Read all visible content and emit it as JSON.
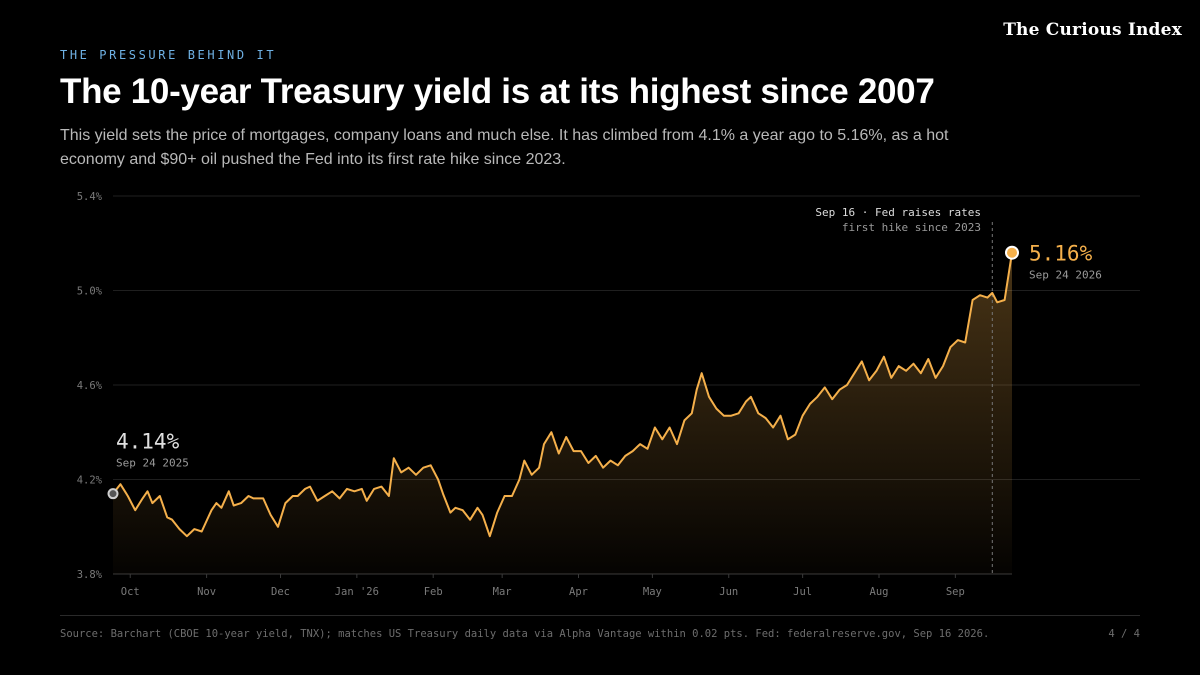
{
  "header": {
    "kicker": "THE PRESSURE BEHIND IT",
    "brand": "The Curious Index",
    "title": "The 10-year Treasury yield is at its highest since 2007",
    "subtitle": "This yield sets the price of mortgages, company loans and much else. It has climbed from 4.1% a year ago to 5.16%, as a hot economy and $90+ oil pushed the Fed into its first rate hike since 2023."
  },
  "footer": {
    "source": "Source: Barchart (CBOE 10-year yield, TNX); matches US Treasury daily data via Alpha Vantage within 0.02 pts. Fed: federalreserve.gov, Sep 16 2026.",
    "page": "4 / 4"
  },
  "colors": {
    "line": "#f5b04b",
    "grid": "#1f1f1f",
    "axis_text": "#7a7a7a",
    "start_marker": "#cfcfcf",
    "annotation_line": "#777777"
  },
  "chart_data": {
    "type": "area",
    "title": "",
    "xlabel": "",
    "ylabel": "",
    "ylim": [
      3.8,
      5.4
    ],
    "x_range": [
      "2025-09-24",
      "2026-09-24"
    ],
    "yticks": [
      {
        "value": 3.8,
        "label": "3.8%"
      },
      {
        "value": 4.2,
        "label": "4.2%"
      },
      {
        "value": 4.6,
        "label": "4.6%"
      },
      {
        "value": 5.0,
        "label": "5.0%"
      },
      {
        "value": 5.4,
        "label": "5.4%"
      }
    ],
    "xticks": [
      {
        "date": "2025-10-01",
        "label": "Oct"
      },
      {
        "date": "2025-11-01",
        "label": "Nov"
      },
      {
        "date": "2025-12-01",
        "label": "Dec"
      },
      {
        "date": "2026-01-01",
        "label": "Jan '26"
      },
      {
        "date": "2026-02-01",
        "label": "Feb"
      },
      {
        "date": "2026-03-01",
        "label": "Mar"
      },
      {
        "date": "2026-04-01",
        "label": "Apr"
      },
      {
        "date": "2026-05-01",
        "label": "May"
      },
      {
        "date": "2026-06-01",
        "label": "Jun"
      },
      {
        "date": "2026-07-01",
        "label": "Jul"
      },
      {
        "date": "2026-08-01",
        "label": "Aug"
      },
      {
        "date": "2026-09-01",
        "label": "Sep"
      }
    ],
    "grid": true,
    "series": [
      {
        "points": [
          [
            "2025-09-24",
            4.14
          ],
          [
            "2025-09-27",
            4.18
          ],
          [
            "2025-09-30",
            4.13
          ],
          [
            "2025-10-03",
            4.07
          ],
          [
            "2025-10-06",
            4.12
          ],
          [
            "2025-10-08",
            4.15
          ],
          [
            "2025-10-10",
            4.1
          ],
          [
            "2025-10-13",
            4.13
          ],
          [
            "2025-10-16",
            4.04
          ],
          [
            "2025-10-18",
            4.03
          ],
          [
            "2025-10-21",
            3.99
          ],
          [
            "2025-10-24",
            3.96
          ],
          [
            "2025-10-27",
            3.99
          ],
          [
            "2025-10-30",
            3.98
          ],
          [
            "2025-11-03",
            4.07
          ],
          [
            "2025-11-05",
            4.1
          ],
          [
            "2025-11-07",
            4.08
          ],
          [
            "2025-11-10",
            4.15
          ],
          [
            "2025-11-12",
            4.09
          ],
          [
            "2025-11-15",
            4.1
          ],
          [
            "2025-11-18",
            4.13
          ],
          [
            "2025-11-20",
            4.12
          ],
          [
            "2025-11-24",
            4.12
          ],
          [
            "2025-11-27",
            4.05
          ],
          [
            "2025-11-30",
            4.0
          ],
          [
            "2025-12-03",
            4.1
          ],
          [
            "2025-12-06",
            4.13
          ],
          [
            "2025-12-08",
            4.13
          ],
          [
            "2025-12-11",
            4.16
          ],
          [
            "2025-12-13",
            4.17
          ],
          [
            "2025-12-16",
            4.11
          ],
          [
            "2025-12-19",
            4.13
          ],
          [
            "2025-12-22",
            4.15
          ],
          [
            "2025-12-25",
            4.12
          ],
          [
            "2025-12-28",
            4.16
          ],
          [
            "2025-12-31",
            4.15
          ],
          [
            "2026-01-03",
            4.16
          ],
          [
            "2026-01-05",
            4.11
          ],
          [
            "2026-01-08",
            4.16
          ],
          [
            "2026-01-11",
            4.17
          ],
          [
            "2026-01-14",
            4.13
          ],
          [
            "2026-01-16",
            4.29
          ],
          [
            "2026-01-19",
            4.23
          ],
          [
            "2026-01-22",
            4.25
          ],
          [
            "2026-01-25",
            4.22
          ],
          [
            "2026-01-28",
            4.25
          ],
          [
            "2026-01-31",
            4.26
          ],
          [
            "2026-02-03",
            4.2
          ],
          [
            "2026-02-05",
            4.14
          ],
          [
            "2026-02-08",
            4.06
          ],
          [
            "2026-02-10",
            4.08
          ],
          [
            "2026-02-13",
            4.07
          ],
          [
            "2026-02-16",
            4.03
          ],
          [
            "2026-02-19",
            4.08
          ],
          [
            "2026-02-21",
            4.05
          ],
          [
            "2026-02-24",
            3.96
          ],
          [
            "2026-02-27",
            4.06
          ],
          [
            "2026-03-02",
            4.13
          ],
          [
            "2026-03-05",
            4.13
          ],
          [
            "2026-03-08",
            4.2
          ],
          [
            "2026-03-10",
            4.28
          ],
          [
            "2026-03-13",
            4.22
          ],
          [
            "2026-03-16",
            4.25
          ],
          [
            "2026-03-18",
            4.35
          ],
          [
            "2026-03-21",
            4.4
          ],
          [
            "2026-03-24",
            4.31
          ],
          [
            "2026-03-27",
            4.38
          ],
          [
            "2026-03-30",
            4.32
          ],
          [
            "2026-04-02",
            4.32
          ],
          [
            "2026-04-05",
            4.27
          ],
          [
            "2026-04-08",
            4.3
          ],
          [
            "2026-04-11",
            4.25
          ],
          [
            "2026-04-14",
            4.28
          ],
          [
            "2026-04-17",
            4.26
          ],
          [
            "2026-04-20",
            4.3
          ],
          [
            "2026-04-23",
            4.32
          ],
          [
            "2026-04-26",
            4.35
          ],
          [
            "2026-04-29",
            4.33
          ],
          [
            "2026-05-02",
            4.42
          ],
          [
            "2026-05-05",
            4.37
          ],
          [
            "2026-05-08",
            4.42
          ],
          [
            "2026-05-11",
            4.35
          ],
          [
            "2026-05-14",
            4.45
          ],
          [
            "2026-05-17",
            4.48
          ],
          [
            "2026-05-19",
            4.58
          ],
          [
            "2026-05-21",
            4.65
          ],
          [
            "2026-05-24",
            4.55
          ],
          [
            "2026-05-27",
            4.5
          ],
          [
            "2026-05-30",
            4.47
          ],
          [
            "2026-06-02",
            4.47
          ],
          [
            "2026-06-05",
            4.48
          ],
          [
            "2026-06-08",
            4.53
          ],
          [
            "2026-06-10",
            4.55
          ],
          [
            "2026-06-13",
            4.48
          ],
          [
            "2026-06-16",
            4.46
          ],
          [
            "2026-06-19",
            4.42
          ],
          [
            "2026-06-22",
            4.47
          ],
          [
            "2026-06-25",
            4.37
          ],
          [
            "2026-06-28",
            4.39
          ],
          [
            "2026-07-01",
            4.47
          ],
          [
            "2026-07-04",
            4.52
          ],
          [
            "2026-07-07",
            4.55
          ],
          [
            "2026-07-10",
            4.59
          ],
          [
            "2026-07-13",
            4.54
          ],
          [
            "2026-07-16",
            4.58
          ],
          [
            "2026-07-19",
            4.6
          ],
          [
            "2026-07-22",
            4.65
          ],
          [
            "2026-07-25",
            4.7
          ],
          [
            "2026-07-28",
            4.62
          ],
          [
            "2026-07-31",
            4.66
          ],
          [
            "2026-08-03",
            4.72
          ],
          [
            "2026-08-06",
            4.63
          ],
          [
            "2026-08-09",
            4.68
          ],
          [
            "2026-08-12",
            4.66
          ],
          [
            "2026-08-15",
            4.69
          ],
          [
            "2026-08-18",
            4.65
          ],
          [
            "2026-08-21",
            4.71
          ],
          [
            "2026-08-24",
            4.63
          ],
          [
            "2026-08-27",
            4.68
          ],
          [
            "2026-08-30",
            4.76
          ],
          [
            "2026-09-02",
            4.79
          ],
          [
            "2026-09-05",
            4.78
          ],
          [
            "2026-09-08",
            4.96
          ],
          [
            "2026-09-11",
            4.98
          ],
          [
            "2026-09-14",
            4.97
          ],
          [
            "2026-09-16",
            4.99
          ],
          [
            "2026-09-18",
            4.95
          ],
          [
            "2026-09-21",
            4.96
          ],
          [
            "2026-09-24",
            5.16
          ]
        ]
      }
    ],
    "start_label": {
      "value_text": "4.14%",
      "date_text": "Sep 24 2025"
    },
    "end_label": {
      "value_text": "5.16%",
      "date_text": "Sep 24 2026"
    },
    "annotation": {
      "date": "2026-09-16",
      "line1": "Sep 16 · Fed raises rates",
      "line2": "first hike since 2023"
    }
  }
}
